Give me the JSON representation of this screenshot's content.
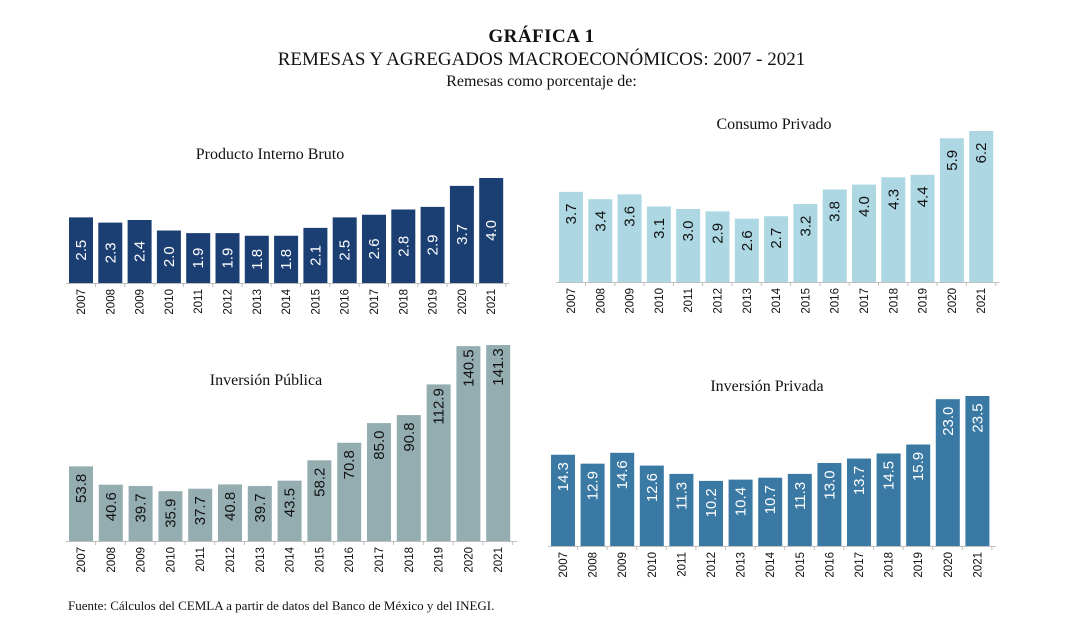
{
  "header": {
    "title": "GRÁFICA 1",
    "subtitle": "REMESAS Y AGREGADOS MACROECONÓMICOS: 2007 - 2021",
    "subsubtitle": "Remesas como porcentaje de:"
  },
  "source": "Fuente: Cálculos del CEMLA a partir de datos del Banco de México y del INEGI.",
  "colors": {
    "pib": "#1c3f73",
    "consumo": "#add7e3",
    "inversion_publica": "#94adb0",
    "inversion_privada": "#3a79a4"
  },
  "chart_data": [
    {
      "type": "bar",
      "title": "Producto Interno Bruto",
      "categories": [
        "2007",
        "2008",
        "2009",
        "2010",
        "2011",
        "2012",
        "2013",
        "2014",
        "2015",
        "2016",
        "2017",
        "2018",
        "2019",
        "2020",
        "2021"
      ],
      "values": [
        2.5,
        2.3,
        2.4,
        2.0,
        1.9,
        1.9,
        1.8,
        1.8,
        2.1,
        2.5,
        2.6,
        2.8,
        2.9,
        3.7,
        4.0
      ],
      "labels": [
        "2.5",
        "2.3",
        "2.4",
        "2.0",
        "1.9",
        "1.9",
        "1.8",
        "1.8",
        "2.1",
        "2.5",
        "2.6",
        "2.8",
        "2.9",
        "3.7",
        "4.0"
      ],
      "color": "#1c3f73",
      "label_color": "#ffffff",
      "xlabel": "",
      "ylabel": "",
      "ylim": [
        0,
        4.0
      ],
      "grid": false
    },
    {
      "type": "bar",
      "title": "Consumo Privado",
      "categories": [
        "2007",
        "2008",
        "2009",
        "2010",
        "2011",
        "2012",
        "2013",
        "2014",
        "2015",
        "2016",
        "2017",
        "2018",
        "2019",
        "2020",
        "2021"
      ],
      "values": [
        3.7,
        3.4,
        3.6,
        3.1,
        3.0,
        2.9,
        2.6,
        2.7,
        3.2,
        3.8,
        4.0,
        4.3,
        4.4,
        5.9,
        6.2
      ],
      "labels": [
        "3.7",
        "3.4",
        "3.6",
        "3.1",
        "3.0",
        "2.9",
        "2.6",
        "2.7",
        "3.2",
        "3.8",
        "4.0",
        "4.3",
        "4.4",
        "5.9",
        "6.2"
      ],
      "color": "#add7e3",
      "label_color": "#111111",
      "xlabel": "",
      "ylabel": "",
      "ylim": [
        0,
        6.2
      ],
      "grid": false
    },
    {
      "type": "bar",
      "title": "Inversión Pública",
      "categories": [
        "2007",
        "2008",
        "2009",
        "2010",
        "2011",
        "2012",
        "2013",
        "2014",
        "2015",
        "2016",
        "2017",
        "2018",
        "2019",
        "2020",
        "2021"
      ],
      "values": [
        53.8,
        40.6,
        39.7,
        35.9,
        37.7,
        40.8,
        39.7,
        43.5,
        58.2,
        70.8,
        85.0,
        90.8,
        112.9,
        140.5,
        141.3
      ],
      "labels": [
        "53.8",
        "40.6",
        "39.7",
        "35.9",
        "37.7",
        "40.8",
        "39.7",
        "43.5",
        "58.2",
        "70.8",
        "85.0",
        "90.8",
        "112.9",
        "140.5",
        "141.3"
      ],
      "color": "#94adb0",
      "label_color": "#111111",
      "xlabel": "",
      "ylabel": "",
      "ylim": [
        0,
        141.3
      ],
      "grid": false
    },
    {
      "type": "bar",
      "title": "Inversión Privada",
      "categories": [
        "2007",
        "2008",
        "2009",
        "2010",
        "2011",
        "2012",
        "2013",
        "2014",
        "2015",
        "2016",
        "2017",
        "2018",
        "2019",
        "2020",
        "2021"
      ],
      "values": [
        14.3,
        12.9,
        14.6,
        12.6,
        11.3,
        10.2,
        10.4,
        10.7,
        11.3,
        13.0,
        13.7,
        14.5,
        15.9,
        23.0,
        23.5
      ],
      "labels": [
        "14.3",
        "12.9",
        "14.6",
        "12.6",
        "11.3",
        "10.2",
        "10.4",
        "10.7",
        "11.3",
        "13.0",
        "13.7",
        "14.5",
        "15.9",
        "23.0",
        "23.5"
      ],
      "color": "#3a79a4",
      "label_color": "#ffffff",
      "xlabel": "",
      "ylabel": "",
      "ylim": [
        0,
        23.5
      ],
      "grid": false
    }
  ]
}
